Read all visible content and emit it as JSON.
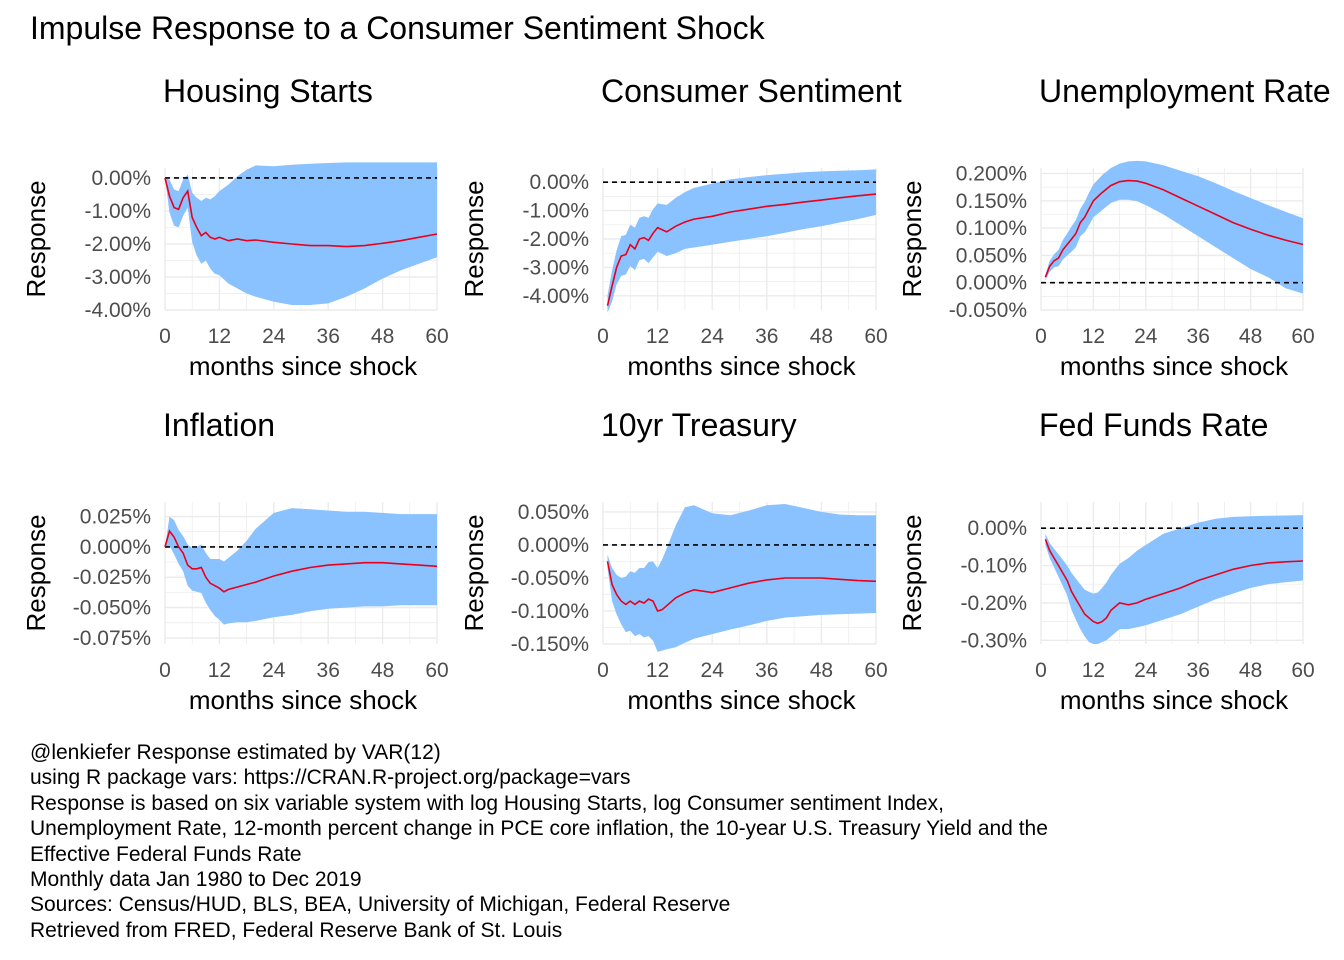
{
  "title": "Impulse Response to a Consumer Sentiment Shock",
  "colors": {
    "band": "#8ac2ff",
    "line": "#e8001c",
    "zero": "#000000",
    "grid": "#ebebeb"
  },
  "caption": [
    "@lenkiefer Response estimated by VAR(12)",
    "using R package vars: https://CRAN.R-project.org/package=vars",
    "Response is based on six variable system with log Housing Starts, log Consumer sentiment Index,",
    "Unemployment Rate, 12-month percent change in PCE core inflation, the 10-year U.S. Treasury Yield and the",
    "Effective Federal Funds Rate",
    "Monthly data Jan 1980 to Dec 2019",
    "Sources: Census/HUD, BLS, BEA, University of Michigan, Federal Reserve",
    "Retrieved from FRED, Federal Reserve Bank of St. Louis"
  ],
  "chart_data": [
    {
      "type": "area",
      "title": "Housing Starts",
      "xlabel": "months since shock",
      "ylabel": "Response",
      "xlim": [
        0,
        60
      ],
      "ylim": [
        -4.0,
        0.3
      ],
      "x_ticks": [
        0,
        12,
        24,
        36,
        48,
        60
      ],
      "y_ticks": [
        0,
        -1,
        -2,
        -3,
        -4
      ],
      "y_tick_labels": [
        "0.00%",
        "-1.00%",
        "-2.00%",
        "-3.00%",
        "-4.00%"
      ],
      "x": [
        0,
        1,
        2,
        3,
        4,
        5,
        6,
        7,
        8,
        9,
        10,
        11,
        12,
        14,
        16,
        18,
        20,
        24,
        28,
        32,
        36,
        40,
        44,
        48,
        52,
        56,
        60
      ],
      "response": [
        0,
        -0.55,
        -0.9,
        -0.95,
        -0.6,
        -0.4,
        -1.2,
        -1.5,
        -1.75,
        -1.65,
        -1.8,
        -1.85,
        -1.8,
        -1.9,
        -1.85,
        -1.9,
        -1.88,
        -1.95,
        -2.0,
        -2.05,
        -2.05,
        -2.08,
        -2.05,
        -1.98,
        -1.9,
        -1.8,
        -1.7
      ],
      "upper": [
        0,
        -0.05,
        -0.35,
        -0.4,
        -0.05,
        0.1,
        -0.45,
        -0.6,
        -0.7,
        -0.6,
        -0.65,
        -0.55,
        -0.4,
        -0.2,
        0.05,
        0.25,
        0.38,
        0.35,
        0.4,
        0.43,
        0.45,
        0.47,
        0.47,
        0.47,
        0.47,
        0.47,
        0.47
      ],
      "lower": [
        0,
        -1.05,
        -1.45,
        -1.5,
        -1.15,
        -0.9,
        -1.95,
        -2.35,
        -2.6,
        -2.5,
        -2.75,
        -2.9,
        -2.95,
        -3.2,
        -3.35,
        -3.5,
        -3.6,
        -3.75,
        -3.85,
        -3.85,
        -3.8,
        -3.6,
        -3.35,
        -3.05,
        -2.8,
        -2.6,
        -2.4
      ]
    },
    {
      "type": "area",
      "title": "Consumer Sentiment",
      "xlabel": "months since shock",
      "ylabel": "Response",
      "xlim": [
        0,
        60
      ],
      "ylim": [
        -4.5,
        0.5
      ],
      "x_ticks": [
        0,
        12,
        24,
        36,
        48,
        60
      ],
      "y_ticks": [
        0,
        -1,
        -2,
        -3,
        -4
      ],
      "y_tick_labels": [
        "0.00%",
        "-1.00%",
        "-2.00%",
        "-3.00%",
        "-4.00%"
      ],
      "x": [
        1,
        2,
        3,
        4,
        5,
        6,
        7,
        8,
        9,
        10,
        11,
        12,
        14,
        16,
        18,
        20,
        24,
        28,
        32,
        36,
        40,
        44,
        48,
        52,
        56,
        60
      ],
      "response": [
        -4.35,
        -3.65,
        -3.0,
        -2.6,
        -2.55,
        -2.2,
        -2.35,
        -2.0,
        -1.95,
        -2.05,
        -1.8,
        -1.6,
        -1.75,
        -1.55,
        -1.4,
        -1.3,
        -1.2,
        -1.05,
        -0.95,
        -0.85,
        -0.78,
        -0.7,
        -0.63,
        -0.55,
        -0.48,
        -0.42
      ],
      "upper": [
        -4.0,
        -3.1,
        -2.4,
        -1.9,
        -1.85,
        -1.5,
        -1.6,
        -1.25,
        -1.2,
        -1.25,
        -0.95,
        -0.75,
        -0.8,
        -0.55,
        -0.35,
        -0.2,
        -0.05,
        0.1,
        0.18,
        0.25,
        0.3,
        0.35,
        0.38,
        0.4,
        0.42,
        0.45
      ],
      "lower": [
        -4.6,
        -4.2,
        -3.6,
        -3.3,
        -3.25,
        -2.95,
        -3.1,
        -2.75,
        -2.7,
        -2.85,
        -2.65,
        -2.45,
        -2.6,
        -2.5,
        -2.35,
        -2.3,
        -2.2,
        -2.1,
        -2.0,
        -1.9,
        -1.78,
        -1.65,
        -1.55,
        -1.42,
        -1.3,
        -1.15
      ]
    },
    {
      "type": "area",
      "title": "Unemployment Rate",
      "xlabel": "months since shock",
      "ylabel": "Response",
      "xlim": [
        0,
        60
      ],
      "ylim": [
        -0.05,
        0.21
      ],
      "x_ticks": [
        0,
        12,
        24,
        36,
        48,
        60
      ],
      "y_ticks": [
        0.2,
        0.15,
        0.1,
        0.05,
        0,
        -0.05
      ],
      "y_tick_labels": [
        "0.200%",
        "0.150%",
        "0.100%",
        "0.050%",
        "0.000%",
        "-0.050%"
      ],
      "x": [
        1,
        2,
        3,
        4,
        5,
        6,
        7,
        8,
        9,
        10,
        11,
        12,
        14,
        16,
        18,
        20,
        22,
        24,
        28,
        32,
        36,
        40,
        44,
        48,
        52,
        56,
        60
      ],
      "response": [
        0.01,
        0.03,
        0.04,
        0.045,
        0.06,
        0.07,
        0.08,
        0.09,
        0.11,
        0.12,
        0.135,
        0.15,
        0.165,
        0.178,
        0.185,
        0.187,
        0.186,
        0.182,
        0.17,
        0.155,
        0.14,
        0.125,
        0.11,
        0.098,
        0.087,
        0.078,
        0.07
      ],
      "upper": [
        0.015,
        0.04,
        0.052,
        0.06,
        0.078,
        0.09,
        0.103,
        0.115,
        0.135,
        0.148,
        0.165,
        0.18,
        0.197,
        0.21,
        0.218,
        0.222,
        0.223,
        0.222,
        0.215,
        0.205,
        0.195,
        0.182,
        0.168,
        0.155,
        0.142,
        0.13,
        0.118
      ],
      "lower": [
        0.005,
        0.02,
        0.028,
        0.03,
        0.042,
        0.05,
        0.057,
        0.065,
        0.085,
        0.092,
        0.105,
        0.12,
        0.133,
        0.146,
        0.152,
        0.152,
        0.149,
        0.142,
        0.125,
        0.105,
        0.085,
        0.065,
        0.045,
        0.025,
        0.01,
        -0.01,
        -0.02
      ]
    },
    {
      "type": "area",
      "title": "Inflation",
      "xlabel": "months since shock",
      "ylabel": "Response",
      "xlim": [
        0,
        60
      ],
      "ylim": [
        -0.08,
        0.037
      ],
      "x_ticks": [
        0,
        12,
        24,
        36,
        48,
        60
      ],
      "y_ticks": [
        0.025,
        0,
        -0.025,
        -0.05,
        -0.075
      ],
      "y_tick_labels": [
        "0.025%",
        "0.000%",
        "-0.025%",
        "-0.050%",
        "-0.075%"
      ],
      "x": [
        0,
        1,
        2,
        3,
        4,
        5,
        6,
        7,
        8,
        9,
        10,
        11,
        12,
        13,
        14,
        16,
        18,
        20,
        24,
        28,
        32,
        36,
        40,
        44,
        48,
        52,
        56,
        60
      ],
      "response": [
        0,
        0.013,
        0.008,
        0,
        -0.005,
        -0.015,
        -0.018,
        -0.018,
        -0.017,
        -0.025,
        -0.03,
        -0.032,
        -0.034,
        -0.037,
        -0.035,
        -0.033,
        -0.031,
        -0.029,
        -0.024,
        -0.02,
        -0.017,
        -0.015,
        -0.014,
        -0.013,
        -0.013,
        -0.014,
        -0.015,
        -0.016
      ],
      "upper": [
        0,
        0.025,
        0.022,
        0.014,
        0.009,
        0.002,
        -0.001,
        0.0,
        0.002,
        -0.005,
        -0.01,
        -0.01,
        -0.01,
        -0.012,
        -0.009,
        -0.003,
        0.005,
        0.015,
        0.028,
        0.032,
        0.031,
        0.03,
        0.029,
        0.029,
        0.028,
        0.027,
        0.027,
        0.027
      ],
      "lower": [
        0,
        0.001,
        -0.006,
        -0.014,
        -0.02,
        -0.032,
        -0.036,
        -0.037,
        -0.038,
        -0.046,
        -0.052,
        -0.057,
        -0.06,
        -0.064,
        -0.063,
        -0.062,
        -0.062,
        -0.061,
        -0.058,
        -0.056,
        -0.053,
        -0.051,
        -0.05,
        -0.049,
        -0.049,
        -0.048,
        -0.048,
        -0.048
      ]
    },
    {
      "type": "area",
      "title": "10yr Treasury",
      "xlabel": "months since shock",
      "ylabel": "Response",
      "xlim": [
        0,
        60
      ],
      "ylim": [
        -0.15,
        0.065
      ],
      "x_ticks": [
        0,
        12,
        24,
        36,
        48,
        60
      ],
      "y_ticks": [
        0.05,
        0,
        -0.05,
        -0.1,
        -0.15
      ],
      "y_tick_labels": [
        "0.050%",
        "0.000%",
        "-0.050%",
        "-0.100%",
        "-0.150%"
      ],
      "x": [
        1,
        2,
        3,
        4,
        5,
        6,
        7,
        8,
        9,
        10,
        11,
        12,
        13,
        14,
        16,
        18,
        20,
        24,
        28,
        32,
        36,
        40,
        44,
        48,
        52,
        56,
        60
      ],
      "response": [
        -0.025,
        -0.06,
        -0.075,
        -0.085,
        -0.09,
        -0.085,
        -0.09,
        -0.085,
        -0.088,
        -0.082,
        -0.085,
        -0.1,
        -0.098,
        -0.092,
        -0.08,
        -0.073,
        -0.068,
        -0.072,
        -0.065,
        -0.058,
        -0.053,
        -0.05,
        -0.05,
        -0.05,
        -0.052,
        -0.054,
        -0.055
      ],
      "upper": [
        -0.015,
        -0.035,
        -0.045,
        -0.05,
        -0.048,
        -0.04,
        -0.042,
        -0.035,
        -0.035,
        -0.026,
        -0.025,
        -0.035,
        -0.022,
        -0.005,
        0.03,
        0.057,
        0.06,
        0.048,
        0.045,
        0.052,
        0.06,
        0.062,
        0.056,
        0.05,
        0.046,
        0.045,
        0.045
      ],
      "lower": [
        -0.035,
        -0.085,
        -0.105,
        -0.12,
        -0.132,
        -0.13,
        -0.138,
        -0.135,
        -0.14,
        -0.138,
        -0.145,
        -0.162,
        -0.16,
        -0.158,
        -0.155,
        -0.148,
        -0.142,
        -0.135,
        -0.128,
        -0.122,
        -0.115,
        -0.11,
        -0.108,
        -0.106,
        -0.105,
        -0.104,
        -0.103
      ]
    },
    {
      "type": "area",
      "title": "Fed Funds Rate",
      "xlabel": "months since shock",
      "ylabel": "Response",
      "xlim": [
        0,
        60
      ],
      "ylim": [
        -0.31,
        0.07
      ],
      "x_ticks": [
        0,
        12,
        24,
        36,
        48,
        60
      ],
      "y_ticks": [
        0,
        -0.1,
        -0.2,
        -0.3
      ],
      "y_tick_labels": [
        "0.00%",
        "-0.10%",
        "-0.20%",
        "-0.30%"
      ],
      "x": [
        1,
        2,
        3,
        4,
        5,
        6,
        7,
        8,
        9,
        10,
        11,
        12,
        13,
        14,
        15,
        16,
        18,
        20,
        22,
        24,
        28,
        32,
        36,
        40,
        44,
        48,
        52,
        56,
        60
      ],
      "response": [
        -0.03,
        -0.06,
        -0.08,
        -0.1,
        -0.12,
        -0.14,
        -0.17,
        -0.19,
        -0.21,
        -0.23,
        -0.24,
        -0.25,
        -0.255,
        -0.25,
        -0.24,
        -0.22,
        -0.2,
        -0.205,
        -0.2,
        -0.19,
        -0.175,
        -0.16,
        -0.14,
        -0.125,
        -0.11,
        -0.1,
        -0.093,
        -0.09,
        -0.088
      ],
      "upper": [
        -0.015,
        -0.04,
        -0.055,
        -0.07,
        -0.085,
        -0.1,
        -0.12,
        -0.135,
        -0.15,
        -0.165,
        -0.17,
        -0.175,
        -0.172,
        -0.16,
        -0.145,
        -0.125,
        -0.095,
        -0.08,
        -0.06,
        -0.045,
        -0.015,
        0.0,
        0.015,
        0.025,
        0.03,
        0.032,
        0.033,
        0.034,
        0.035
      ],
      "lower": [
        -0.045,
        -0.08,
        -0.105,
        -0.13,
        -0.155,
        -0.18,
        -0.22,
        -0.245,
        -0.27,
        -0.29,
        -0.305,
        -0.31,
        -0.31,
        -0.305,
        -0.3,
        -0.29,
        -0.27,
        -0.27,
        -0.265,
        -0.26,
        -0.245,
        -0.23,
        -0.21,
        -0.19,
        -0.175,
        -0.16,
        -0.15,
        -0.145,
        -0.14
      ]
    }
  ]
}
